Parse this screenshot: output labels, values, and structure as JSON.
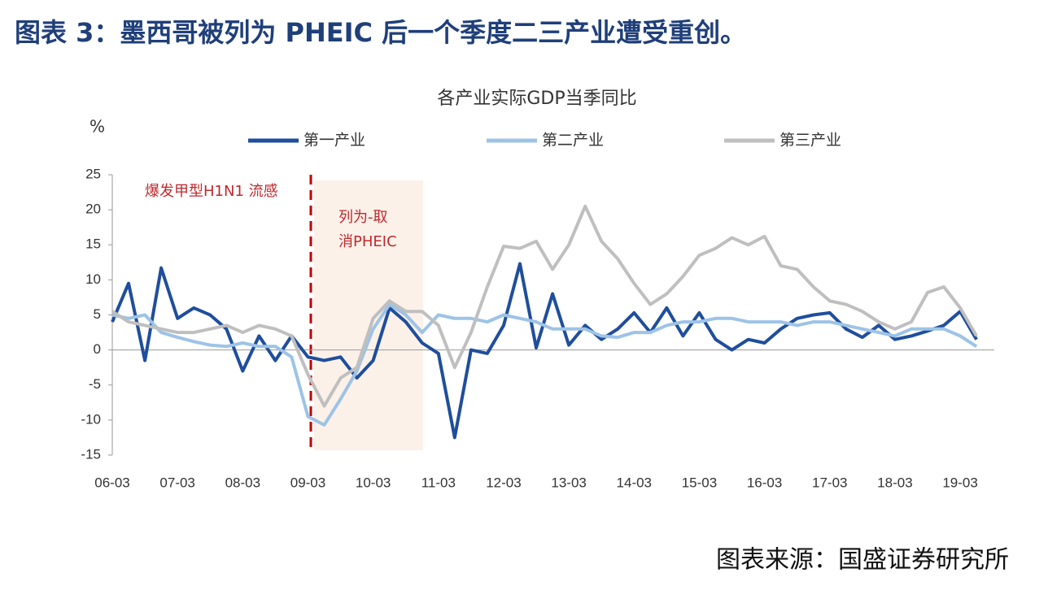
{
  "header": {
    "title": "图表 3：墨西哥被列为 PHEIC 后一个季度二三产业遭受重创。"
  },
  "chart_data": {
    "type": "line",
    "title": "各产业实际GDP当季同比",
    "y_label": "%",
    "categories": [
      "06-03",
      null,
      null,
      null,
      "07-03",
      null,
      null,
      null,
      "08-03",
      null,
      null,
      null,
      "09-03",
      null,
      null,
      null,
      "10-03",
      null,
      null,
      null,
      "11-03",
      null,
      null,
      null,
      "12-03",
      null,
      null,
      null,
      "13-03",
      null,
      null,
      null,
      "14-03",
      null,
      null,
      null,
      "15-03",
      null,
      null,
      null,
      "16-03",
      null,
      null,
      null,
      "17-03",
      null,
      null,
      null,
      "18-03",
      null,
      null,
      null,
      "19-03",
      null
    ],
    "series": [
      {
        "name": "第一产业",
        "color": "#1f4e9c",
        "values": [
          4,
          9.5,
          -1.5,
          11.7,
          4.5,
          6,
          5,
          3,
          -3,
          2,
          -1.5,
          2,
          -1,
          -1.5,
          -1,
          -4,
          -1.5,
          6,
          4,
          1,
          -0.5,
          -12.5,
          0,
          -0.5,
          3.5,
          12.3,
          0.3,
          8,
          0.7,
          3.5,
          1.5,
          3,
          5.3,
          2.5,
          6,
          2,
          5.3,
          1.5,
          0,
          1.5,
          1,
          3,
          4.5,
          5,
          5.3,
          3,
          1.8,
          3.5,
          1.5,
          2,
          2.7,
          3.5,
          5.5,
          1.5
        ]
      },
      {
        "name": "第二产业",
        "color": "#9dc3e6",
        "values": [
          5,
          4.5,
          5,
          2.5,
          1.8,
          1.2,
          0.7,
          0.5,
          1,
          0.5,
          0.5,
          -1,
          -9.5,
          -10.7,
          -7,
          -3,
          3,
          6.5,
          5,
          2.5,
          5,
          4.5,
          4.5,
          4,
          5,
          4.5,
          4,
          3,
          3,
          3,
          2,
          1.8,
          2.5,
          2.5,
          3.5,
          4,
          4,
          4.5,
          4.5,
          4,
          4,
          4,
          3.5,
          4,
          4,
          3.5,
          3,
          2.5,
          2,
          3,
          3,
          3,
          2,
          0.5
        ]
      },
      {
        "name": "第三产业",
        "color": "#bfbfbf",
        "values": [
          5.5,
          4,
          3.5,
          3,
          2.5,
          2.5,
          3,
          3.5,
          2.5,
          3.5,
          3,
          2,
          -3.5,
          -8,
          -4,
          -2.5,
          4.5,
          7,
          5.5,
          5.5,
          3.5,
          -2.5,
          2.5,
          9,
          14.8,
          14.5,
          15.5,
          11.5,
          15,
          20.5,
          15.5,
          13,
          9.5,
          6.5,
          8,
          10.5,
          13.5,
          14.5,
          16,
          15,
          16.2,
          12,
          11.5,
          9,
          7,
          6.5,
          5.5,
          4,
          3,
          4,
          8.2,
          9,
          6,
          2
        ]
      }
    ],
    "ylim": [
      -15,
      25
    ],
    "yticks": [
      -15,
      -10,
      -5,
      0,
      5,
      10,
      15,
      20,
      25
    ],
    "annotations": [
      "爆发甲型H1N1 流感",
      "列为-取",
      "消PHEIC"
    ]
  },
  "footer": {
    "source": "图表来源：国盛证券研究所"
  }
}
